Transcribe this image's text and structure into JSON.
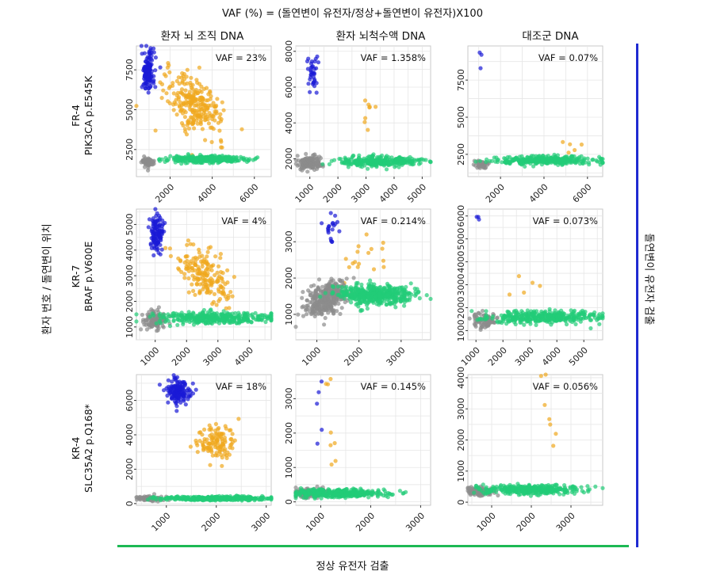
{
  "figure": {
    "title": "VAF (%) = (돌연변이 유전자/정상+돌연변이 유전자)X100",
    "columns": [
      "환자 뇌 조직 DNA",
      "환자 뇌척수액 DNA",
      "대조군 DNA"
    ],
    "rows": [
      {
        "line1": "FR-4",
        "line2": "PIK3CA p.E545K"
      },
      {
        "line1": "KR-7",
        "line2": "BRAF p.V600E"
      },
      {
        "line1": "KR-4",
        "line2": "SLC35A2 p.Q168*"
      }
    ],
    "ylabel_left": "환자 번호 / 돌연변이 위치",
    "ylabel_right": "돌연변이 유전자 검출",
    "xlabel_bottom": "정상 유전자 검출",
    "colors": {
      "mutant": "#1a1ad6",
      "double": "#f0a81e",
      "normal": "#22cc77",
      "empty": "#8c8c8c",
      "grid": "#e6e6e6",
      "axis_line_right": "#1f2bd1",
      "axis_line_bottom": "#1db954"
    }
  },
  "chart_data": [
    {
      "type": "scatter",
      "row": 0,
      "col": 0,
      "vaf_label": "VAF = 23%",
      "xlim": [
        400,
        6800
      ],
      "ylim": [
        800,
        9000
      ],
      "xticks": [
        2000,
        4000,
        6000
      ],
      "yticks": [
        2500,
        5000,
        7500
      ],
      "clusters": [
        {
          "name": "mutant",
          "cx": 950,
          "cy": 7400,
          "sx": 150,
          "sy": 650,
          "n": 140
        },
        {
          "name": "double",
          "cx": 3200,
          "cy": 5300,
          "sx": 700,
          "sy": 800,
          "n": 260,
          "tilt": -0.55
        },
        {
          "name": "empty",
          "cx": 950,
          "cy": 1700,
          "sx": 140,
          "sy": 160,
          "n": 60
        },
        {
          "name": "normal",
          "cx": 3700,
          "cy": 1900,
          "sx": 900,
          "sy": 110,
          "n": 320
        }
      ]
    },
    {
      "type": "scatter",
      "row": 0,
      "col": 1,
      "vaf_label": "VAF = 1.358%",
      "xlim": [
        500,
        5300
      ],
      "ylim": [
        1000,
        8300
      ],
      "xticks": [
        1000,
        2000,
        3000,
        4000,
        5000
      ],
      "yticks": [
        2000,
        4000,
        6000,
        8000
      ],
      "clusters": [
        {
          "name": "mutant",
          "cx": 1100,
          "cy": 6900,
          "sx": 90,
          "sy": 450,
          "n": 35
        },
        {
          "name": "double",
          "cx": 3000,
          "cy": 4500,
          "sx": 300,
          "sy": 800,
          "n": 8
        },
        {
          "name": "empty",
          "cx": 1000,
          "cy": 1750,
          "sx": 220,
          "sy": 170,
          "n": 160
        },
        {
          "name": "normal",
          "cx": 3500,
          "cy": 1850,
          "sx": 700,
          "sy": 140,
          "n": 300
        }
      ]
    },
    {
      "type": "scatter",
      "row": 0,
      "col": 2,
      "vaf_label": "VAF = 0.07%",
      "xlim": [
        500,
        6700
      ],
      "ylim": [
        1000,
        9800
      ],
      "xticks": [
        2000,
        4000,
        6000
      ],
      "yticks": [
        2500,
        5000,
        7500
      ],
      "clusters": [
        {
          "name": "mutant",
          "cx": 1100,
          "cy": 9000,
          "sx": 40,
          "sy": 350,
          "n": 3
        },
        {
          "name": "double",
          "cx": 5200,
          "cy": 3100,
          "sx": 200,
          "sy": 450,
          "n": 5
        },
        {
          "name": "empty",
          "cx": 1100,
          "cy": 1850,
          "sx": 160,
          "sy": 130,
          "n": 50
        },
        {
          "name": "normal",
          "cx": 4200,
          "cy": 2100,
          "sx": 1300,
          "sy": 140,
          "n": 320
        }
      ]
    },
    {
      "type": "scatter",
      "row": 1,
      "col": 0,
      "vaf_label": "VAF = 4%",
      "xlim": [
        400,
        4700
      ],
      "ylim": [
        500,
        5600
      ],
      "xticks": [
        1000,
        2000,
        3000,
        4000
      ],
      "yticks": [
        1000,
        2000,
        3000,
        4000,
        5000
      ],
      "clusters": [
        {
          "name": "mutant",
          "cx": 1050,
          "cy": 4650,
          "sx": 100,
          "sy": 350,
          "n": 110
        },
        {
          "name": "double",
          "cx": 2600,
          "cy": 3000,
          "sx": 400,
          "sy": 450,
          "n": 180,
          "tilt": -0.5
        },
        {
          "name": "empty",
          "cx": 1000,
          "cy": 1250,
          "sx": 200,
          "sy": 180,
          "n": 110
        },
        {
          "name": "normal",
          "cx": 2800,
          "cy": 1350,
          "sx": 900,
          "sy": 120,
          "n": 360
        }
      ]
    },
    {
      "type": "scatter",
      "row": 1,
      "col": 1,
      "vaf_label": "VAF = 0.214%",
      "xlim": [
        500,
        3700
      ],
      "ylim": [
        300,
        3900
      ],
      "xticks": [
        1000,
        2000,
        3000
      ],
      "yticks": [
        1000,
        2000,
        3000
      ],
      "clusters": [
        {
          "name": "mutant",
          "cx": 1350,
          "cy": 3400,
          "sx": 90,
          "sy": 200,
          "n": 20
        },
        {
          "name": "double",
          "cx": 2100,
          "cy": 2300,
          "sx": 250,
          "sy": 400,
          "n": 18
        },
        {
          "name": "empty",
          "cx": 1200,
          "cy": 1400,
          "sx": 250,
          "sy": 220,
          "n": 340,
          "tilt": 0.5
        },
        {
          "name": "normal",
          "cx": 2400,
          "cy": 1550,
          "sx": 420,
          "sy": 130,
          "n": 480
        }
      ]
    },
    {
      "type": "scatter",
      "row": 1,
      "col": 2,
      "vaf_label": "VAF = 0.073%",
      "xlim": [
        700,
        5700
      ],
      "ylim": [
        600,
        6300
      ],
      "xticks": [
        1000,
        2000,
        3000,
        4000,
        5000
      ],
      "yticks": [
        1000,
        2000,
        3000,
        4000,
        5000,
        6000
      ],
      "clusters": [
        {
          "name": "mutant",
          "cx": 1100,
          "cy": 5900,
          "sx": 80,
          "sy": 70,
          "n": 3
        },
        {
          "name": "double",
          "cx": 3200,
          "cy": 2700,
          "sx": 600,
          "sy": 700,
          "n": 5
        },
        {
          "name": "empty",
          "cx": 1300,
          "cy": 1450,
          "sx": 250,
          "sy": 180,
          "n": 90
        },
        {
          "name": "normal",
          "cx": 3500,
          "cy": 1600,
          "sx": 1000,
          "sy": 130,
          "n": 360
        }
      ]
    },
    {
      "type": "scatter",
      "row": 2,
      "col": 0,
      "vaf_label": "VAF = 18%",
      "xlim": [
        400,
        3100
      ],
      "ylim": [
        -100,
        7500
      ],
      "xticks": [
        1000,
        2000,
        3000
      ],
      "yticks": [
        0,
        2000,
        4000,
        6000
      ],
      "clusters": [
        {
          "name": "mutant",
          "cx": 1250,
          "cy": 6500,
          "sx": 120,
          "sy": 350,
          "n": 140
        },
        {
          "name": "double",
          "cx": 2000,
          "cy": 3600,
          "sx": 200,
          "sy": 450,
          "n": 120
        },
        {
          "name": "empty",
          "cx": 650,
          "cy": 300,
          "sx": 130,
          "sy": 80,
          "n": 90
        },
        {
          "name": "normal",
          "cx": 2000,
          "cy": 300,
          "sx": 550,
          "sy": 60,
          "n": 360
        }
      ]
    },
    {
      "type": "scatter",
      "row": 2,
      "col": 1,
      "vaf_label": "VAF = 0.145%",
      "xlim": [
        500,
        3200
      ],
      "ylim": [
        -100,
        3700
      ],
      "xticks": [
        1000,
        2000,
        3000
      ],
      "yticks": [
        0,
        1000,
        2000,
        3000
      ],
      "clusters": [
        {
          "name": "mutant",
          "cx": 950,
          "cy": 2500,
          "sx": 70,
          "sy": 900,
          "n": 5
        },
        {
          "name": "double",
          "cx": 1150,
          "cy": 2300,
          "sx": 80,
          "sy": 800,
          "n": 10
        },
        {
          "name": "empty",
          "cx": 750,
          "cy": 250,
          "sx": 150,
          "sy": 60,
          "n": 120
        },
        {
          "name": "normal",
          "cx": 1400,
          "cy": 250,
          "sx": 450,
          "sy": 60,
          "n": 360
        }
      ]
    },
    {
      "type": "scatter",
      "row": 2,
      "col": 2,
      "vaf_label": "VAF = 0.056%",
      "xlim": [
        400,
        3800
      ],
      "ylim": [
        -100,
        4100
      ],
      "xticks": [
        1000,
        2000,
        3000
      ],
      "yticks": [
        0,
        1000,
        2000,
        3000,
        4000
      ],
      "clusters": [
        {
          "name": "double",
          "cx": 2450,
          "cy": 2300,
          "sx": 180,
          "sy": 900,
          "n": 7
        },
        {
          "name": "empty",
          "cx": 700,
          "cy": 350,
          "sx": 150,
          "sy": 70,
          "n": 100
        },
        {
          "name": "normal",
          "cx": 2000,
          "cy": 400,
          "sx": 600,
          "sy": 70,
          "n": 360
        }
      ]
    }
  ]
}
